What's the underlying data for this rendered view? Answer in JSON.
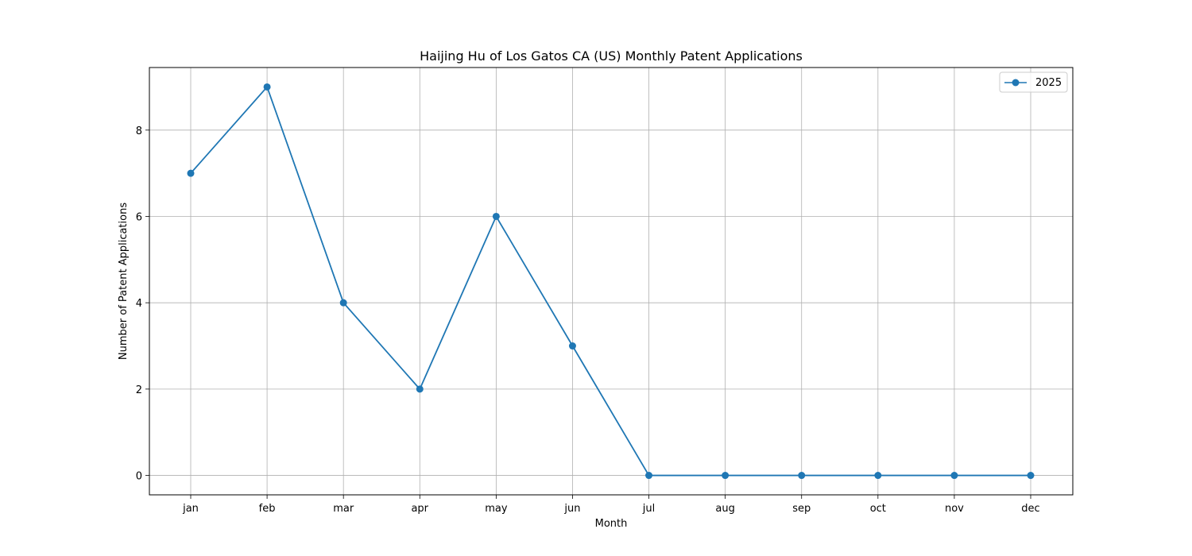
{
  "chart_data": {
    "type": "line",
    "title": "Haijing Hu of Los Gatos CA (US) Monthly Patent Applications",
    "xlabel": "Month",
    "ylabel": "Number of Patent Applications",
    "categories": [
      "jan",
      "feb",
      "mar",
      "apr",
      "may",
      "jun",
      "jul",
      "aug",
      "sep",
      "oct",
      "nov",
      "dec"
    ],
    "series": [
      {
        "name": "2025",
        "values": [
          7,
          9,
          4,
          2,
          6,
          3,
          0,
          0,
          0,
          0,
          0,
          0
        ],
        "color": "#1f77b4",
        "marker": "circle"
      }
    ],
    "yticks": [
      0,
      2,
      4,
      6,
      8
    ],
    "ylim": [
      -0.45,
      9.45
    ],
    "grid": true,
    "legend_position": "top-right"
  }
}
